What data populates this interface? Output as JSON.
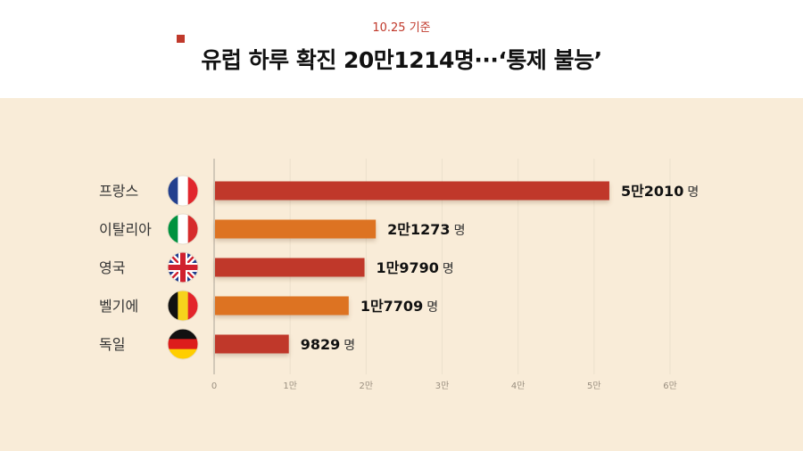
{
  "header": {
    "date_label": "10.25 기준",
    "headline": "유럽 하루 확진 20만1214명···‘통제 불능’"
  },
  "colors": {
    "background": "#f9ecd8",
    "bar_red": "#c0392b",
    "bar_orange": "#dd7320",
    "accent": "#c0392b"
  },
  "chart_data": {
    "type": "bar",
    "orientation": "horizontal",
    "categories": [
      "프랑스",
      "이탈리아",
      "영국",
      "벨기에",
      "독일"
    ],
    "flags": [
      "france-flag-icon",
      "italy-flag-icon",
      "uk-flag-icon",
      "belgium-flag-icon",
      "germany-flag-icon"
    ],
    "values": [
      52010,
      21273,
      19790,
      17709,
      9829
    ],
    "value_labels": [
      "5만2010",
      "2만1273",
      "1만9790",
      "1만7709",
      "9829"
    ],
    "value_unit": "명",
    "bar_colors": [
      "#c0392b",
      "#dd7320",
      "#c0392b",
      "#dd7320",
      "#c0392b"
    ],
    "xlim": [
      0,
      60000
    ],
    "ticks": [
      0,
      10000,
      20000,
      30000,
      40000,
      50000,
      60000
    ],
    "tick_labels": [
      "0",
      "1만",
      "2만",
      "3만",
      "4만",
      "5만",
      "6만"
    ],
    "grid": true
  }
}
